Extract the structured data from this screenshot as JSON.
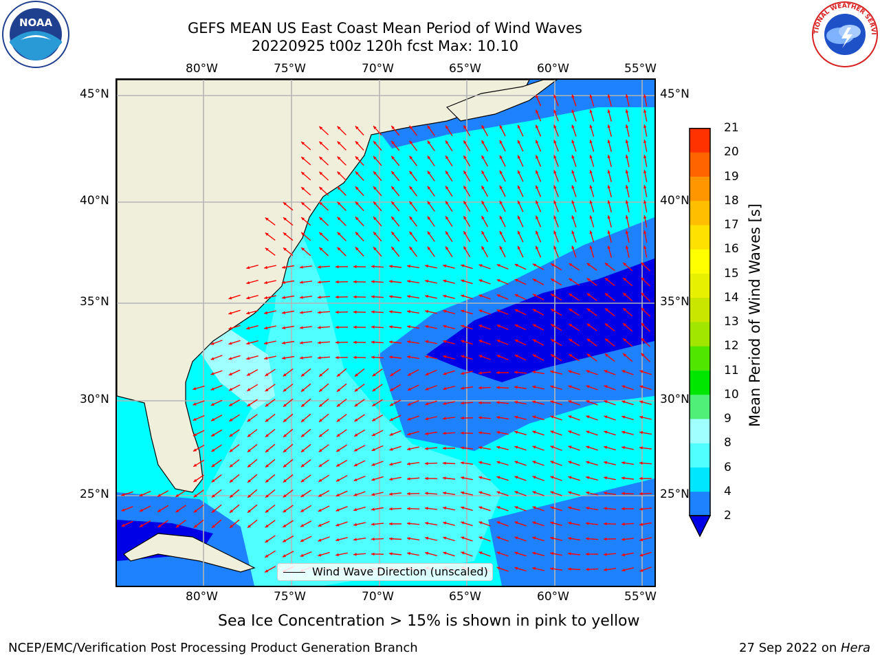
{
  "header": {
    "title_line1": "GEFS MEAN US East Coast Mean Period of Wind Waves",
    "title_line2": "20220925 t00z 120h fcst   Max: 10.10"
  },
  "logos": {
    "left": {
      "name": "noaa-logo",
      "text": "NOAA"
    },
    "right": {
      "name": "nws-logo",
      "text": "NATIONAL WEATHER SERVICE"
    }
  },
  "map": {
    "lon_labels": [
      "80°W",
      "75°W",
      "70°W",
      "65°W",
      "60°W",
      "55°W"
    ],
    "lat_labels": [
      "45°N",
      "40°N",
      "35°N",
      "30°N",
      "25°N"
    ],
    "legend_text": "Wind Wave Direction (unscaled)",
    "colors": {
      "land": "#efefdc",
      "coast": "#000000",
      "grid": "#b4b4b4",
      "arrow": "#ff0000",
      "ocean_2_4": "#1e82ff",
      "ocean_4_6": "#00ffff",
      "ocean_6_8": "#50ffff",
      "ocean_8_9": "#a0ffff",
      "below_2": "#0000e6"
    }
  },
  "colorbar": {
    "label": "Mean Period of Wind Waves [s]",
    "ticks": [
      "2",
      "4",
      "6",
      "8",
      "9",
      "10",
      "11",
      "12",
      "13",
      "14",
      "15",
      "16",
      "17",
      "18",
      "19",
      "20",
      "21"
    ],
    "colors": [
      "#1e82ff",
      "#00e6ff",
      "#50ffff",
      "#a0ffff",
      "#50f078",
      "#00e600",
      "#50e600",
      "#a0e600",
      "#c8e600",
      "#e6f000",
      "#ffff00",
      "#ffe100",
      "#ffbe00",
      "#ff9600",
      "#ff6400",
      "#ff3200",
      "#ff0000"
    ],
    "extend_color": "#0000e6"
  },
  "caption": "Sea Ice Concentration > 15% is shown in pink to yellow",
  "footer": {
    "left": "NCEP/EMC/Verification Post Processing Product Generation Branch",
    "right_date": "27 Sep 2022 on ",
    "right_host": "Hera"
  }
}
